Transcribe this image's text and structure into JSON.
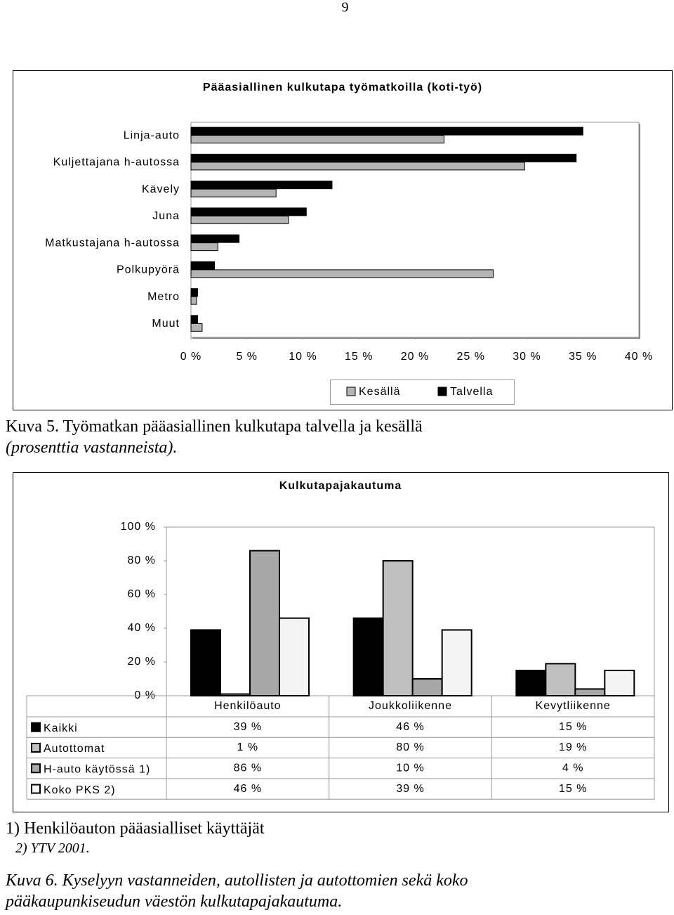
{
  "page_number": "9",
  "chart_data": [
    {
      "type": "hbar",
      "title": "Pääasiallinen kulkutapa työmatkoilla (koti-työ)",
      "categories": [
        "Linja-auto",
        "Kuljettajana h-autossa",
        "Kävely",
        "Juna",
        "Matkustajana h-autossa",
        "Polkupyörä",
        "Metro",
        "Muut"
      ],
      "series": [
        {
          "name": "Talvella",
          "color": "#000000",
          "values": [
            35.0,
            34.4,
            12.6,
            10.3,
            4.3,
            2.1,
            0.6,
            0.6
          ]
        },
        {
          "name": "Kesällä",
          "color": "#b4b4b4",
          "values": [
            22.6,
            29.8,
            7.6,
            8.7,
            2.4,
            27.0,
            0.5,
            1.0
          ]
        }
      ],
      "xlim": [
        0,
        40
      ],
      "xticks": [
        {
          "value": 0,
          "label": "0 %"
        },
        {
          "value": 5,
          "label": "5 %"
        },
        {
          "value": 10,
          "label": "10 %"
        },
        {
          "value": 15,
          "label": "15 %"
        },
        {
          "value": 20,
          "label": "20 %"
        },
        {
          "value": 25,
          "label": "25 %"
        },
        {
          "value": 30,
          "label": "30 %"
        },
        {
          "value": 35,
          "label": "35 %"
        },
        {
          "value": 40,
          "label": "40 %"
        }
      ],
      "legend": "bottom-right"
    },
    {
      "type": "bar",
      "title": "Kulkutapajakautuma",
      "categories": [
        "Henkilöauto",
        "Joukkoliikenne",
        "Kevytliikenne"
      ],
      "series": [
        {
          "name": "Kaikki",
          "color": "#000000",
          "values": [
            39,
            46,
            15
          ],
          "value_labels": [
            "39 %",
            "46 %",
            "15 %"
          ]
        },
        {
          "name": "Autottomat",
          "color": "#c0c0c0",
          "values": [
            1,
            80,
            19
          ],
          "value_labels": [
            "1 %",
            "80 %",
            "19 %"
          ]
        },
        {
          "name": "H-auto käytössä 1)",
          "color": "#a8a8a8",
          "values": [
            86,
            10,
            4
          ],
          "value_labels": [
            "86 %",
            "10 %",
            "4 %"
          ]
        },
        {
          "name": "Koko PKS 2)",
          "color": "#f4f4f4",
          "values": [
            46,
            39,
            15
          ],
          "value_labels": [
            "46 %",
            "39 %",
            "15 %"
          ]
        }
      ],
      "ylim": [
        0,
        100
      ],
      "yticks": [
        {
          "value": 0,
          "label": "0 %"
        },
        {
          "value": 20,
          "label": "20 %"
        },
        {
          "value": 40,
          "label": "40 %"
        },
        {
          "value": 60,
          "label": "60 %"
        },
        {
          "value": 80,
          "label": "80 %"
        },
        {
          "value": 100,
          "label": "100 %"
        }
      ]
    }
  ],
  "caption1": [
    "Kuva 5. Työmatkan pääasiallinen kulkutapa talvella ja kesällä",
    "(prosenttia vastanneista)."
  ],
  "footnotes": [
    "1) Henkilöauton pääasialliset käyttäjät",
    "2) YTV 2001."
  ],
  "caption2": [
    "Kuva 6. Kyselyyn vastanneiden, autollisten ja autottomien sekä koko",
    "pääkaupunkiseudun väestön kulkutapajakautuma."
  ]
}
